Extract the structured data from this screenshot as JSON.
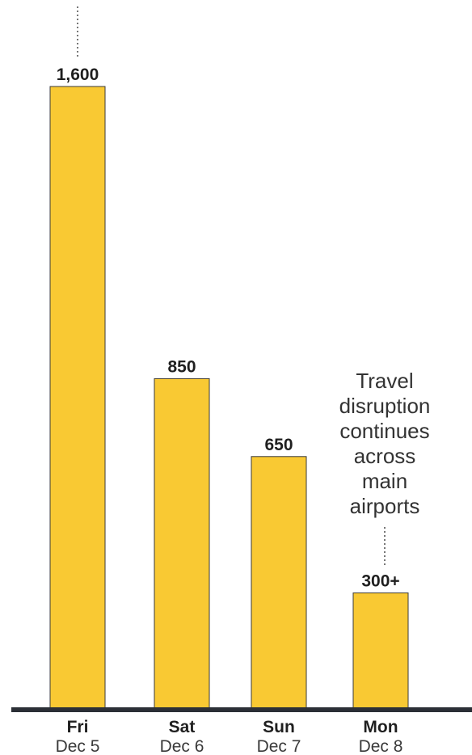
{
  "chart_data": {
    "type": "bar",
    "categories": [
      {
        "day": "Fri",
        "date": "Dec 5"
      },
      {
        "day": "Sat",
        "date": "Dec 6"
      },
      {
        "day": "Sun",
        "date": "Dec 7"
      },
      {
        "day": "Mon",
        "date": "Dec 8"
      }
    ],
    "values": [
      1600,
      850,
      650,
      300
    ],
    "value_labels": [
      "1,600",
      "850",
      "650",
      "300+"
    ],
    "annotation": {
      "lines": [
        "Travel",
        "disruption",
        "continues",
        "across",
        "main",
        "airports"
      ],
      "category_index": 3
    },
    "ylim": [
      0,
      1600
    ],
    "grid": false,
    "colors": {
      "bar": "#f9c933",
      "baseline": "#2b2f36"
    }
  }
}
